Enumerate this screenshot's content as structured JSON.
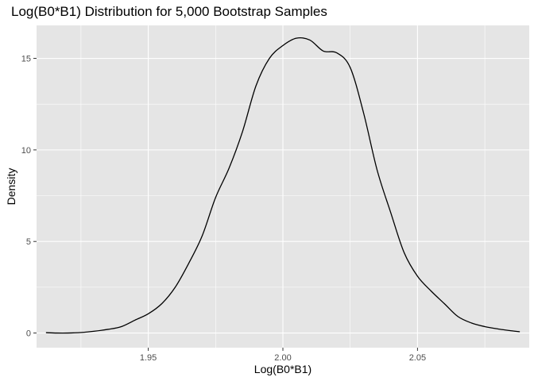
{
  "chart_data": {
    "type": "line",
    "title": "Log(B0*B1) Distribution for 5,000 Bootstrap Samples",
    "xlabel": "Log(B0*B1)",
    "ylabel": "Density",
    "xlim": [
      1.9085,
      2.0915
    ],
    "ylim": [
      -0.8,
      16.8
    ],
    "x_ticks": [
      1.95,
      2.0,
      2.05
    ],
    "x_tick_labels": [
      "1.95",
      "2.00",
      "2.05"
    ],
    "y_ticks": [
      0,
      5,
      10,
      15
    ],
    "y_tick_labels": [
      "0",
      "5",
      "10",
      "15"
    ],
    "grid": true,
    "panel_background": "#e5e5e5",
    "grid_color": "#ffffff",
    "line_color": "#000000",
    "series": [
      {
        "x": [
          1.912,
          1.916,
          1.92,
          1.925,
          1.93,
          1.935,
          1.94,
          1.945,
          1.95,
          1.955,
          1.96,
          1.965,
          1.97,
          1.975,
          1.98,
          1.985,
          1.99,
          1.995,
          2.0,
          2.005,
          2.01,
          2.015,
          2.02,
          2.025,
          2.03,
          2.035,
          2.04,
          2.045,
          2.05,
          2.055,
          2.06,
          2.065,
          2.07,
          2.075,
          2.08,
          2.085,
          2.088
        ],
        "y": [
          0.02,
          0.0,
          0.0,
          0.03,
          0.1,
          0.2,
          0.35,
          0.7,
          1.05,
          1.6,
          2.5,
          3.8,
          5.3,
          7.4,
          9.0,
          11.0,
          13.5,
          15.0,
          15.7,
          16.1,
          16.0,
          15.4,
          15.3,
          14.5,
          12.0,
          8.9,
          6.6,
          4.4,
          3.1,
          2.3,
          1.6,
          0.9,
          0.55,
          0.35,
          0.22,
          0.12,
          0.07
        ]
      }
    ]
  }
}
